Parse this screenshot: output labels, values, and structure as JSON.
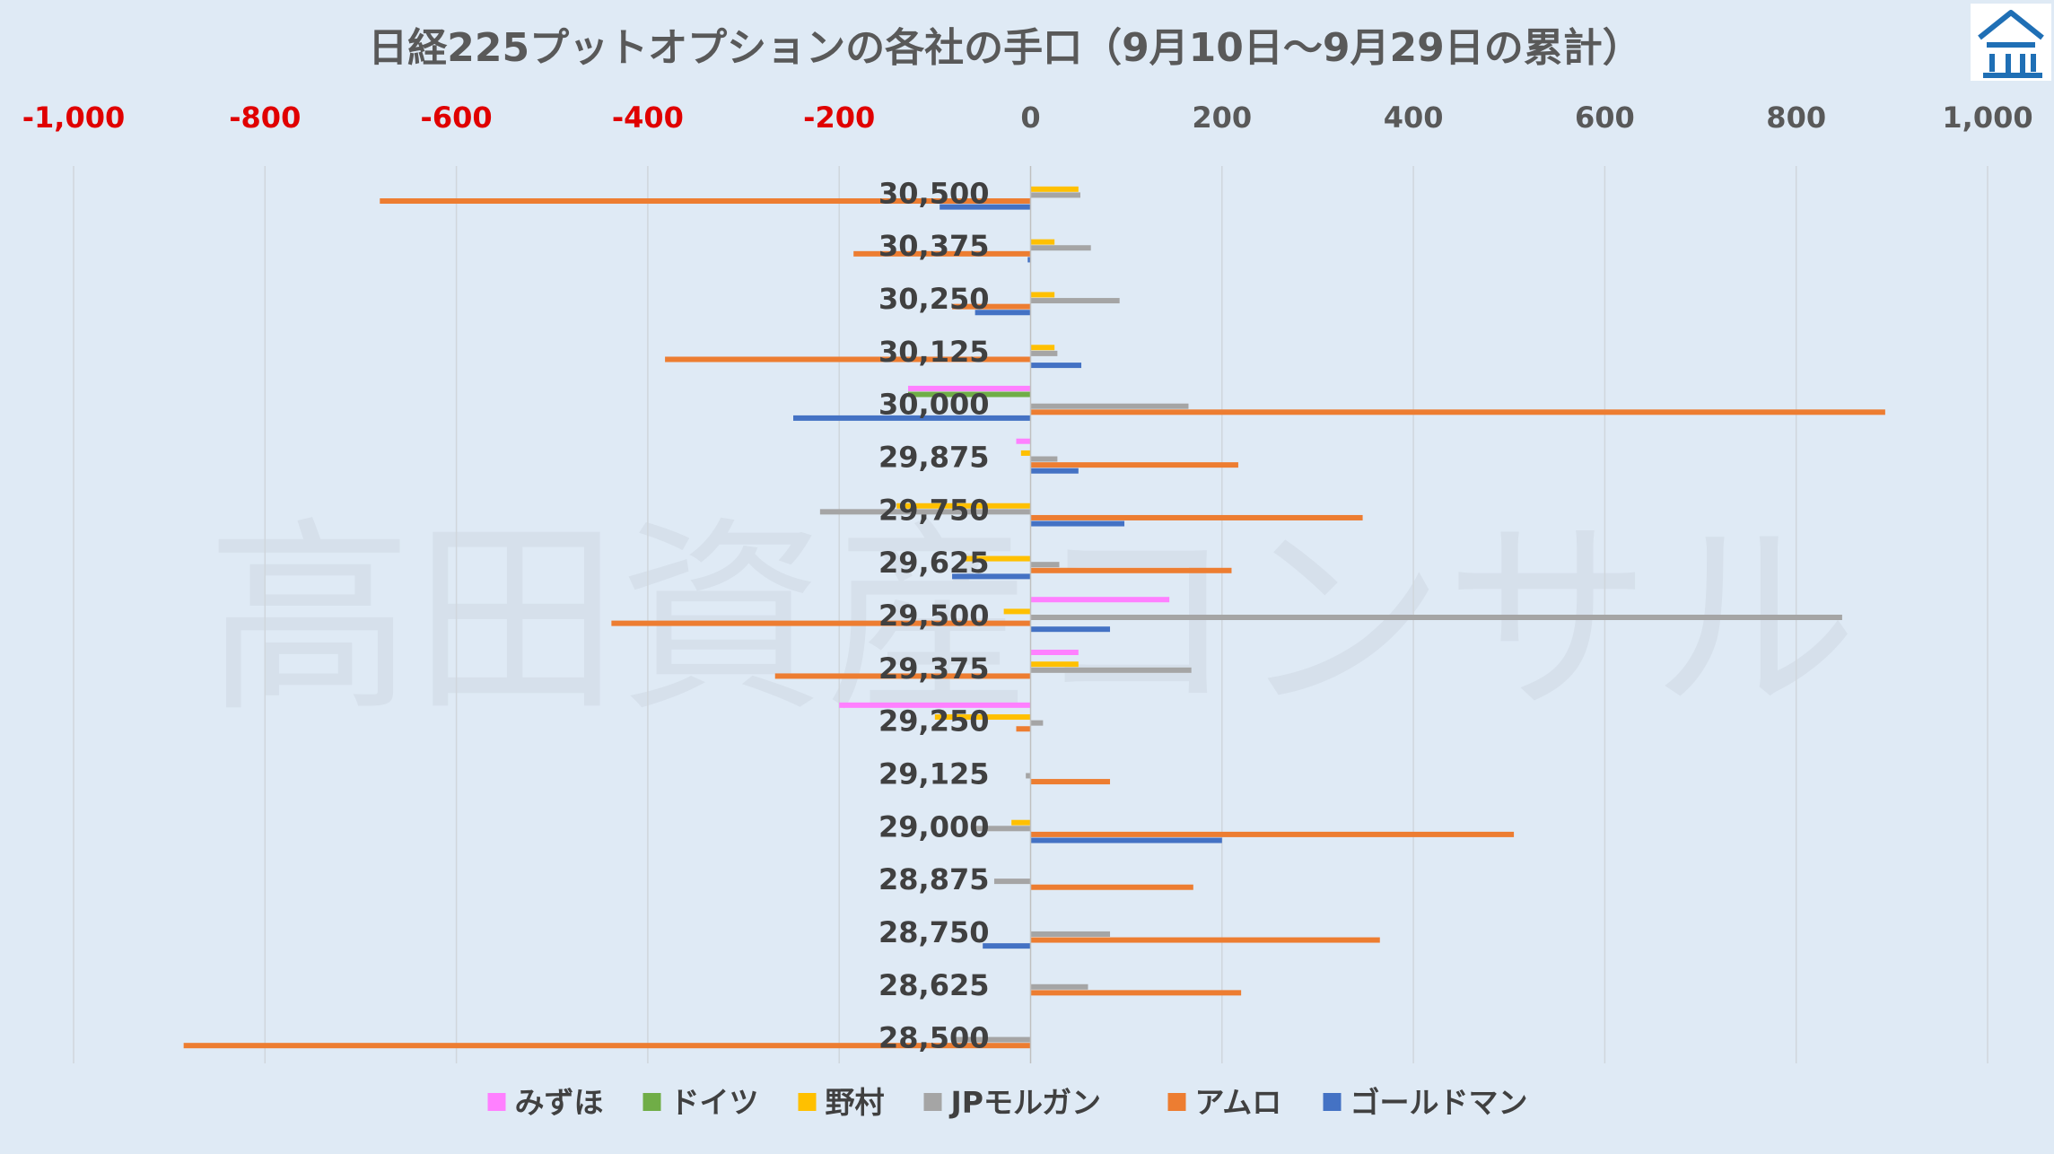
{
  "logo": {
    "icon": "house-logo-icon",
    "color": "#1f6fb5"
  },
  "watermark_text": "高田資産コンサル",
  "chart_data": {
    "type": "bar",
    "orientation": "horizontal",
    "title": "日経225プットオプションの各社の手口（9月10日～9月29日の累計）",
    "xlim": [
      -1000,
      1000
    ],
    "x_ticks": [
      -1000,
      -800,
      -600,
      -400,
      -200,
      0,
      200,
      400,
      600,
      800,
      1000
    ],
    "x_tick_labels": [
      "-1,000",
      "-800",
      "-600",
      "-400",
      "-200",
      "0",
      "200",
      "400",
      "600",
      "800",
      "1,000"
    ],
    "negative_tick_color": "#e00000",
    "grid": true,
    "legend_position": "bottom",
    "categories": [
      "30,500",
      "30,375",
      "30,250",
      "30,125",
      "30,000",
      "29,875",
      "29,750",
      "29,625",
      "29,500",
      "29,375",
      "29,250",
      "29,125",
      "29,000",
      "28,875",
      "28,750",
      "28,625",
      "28,500"
    ],
    "series": [
      {
        "name": "みずほ",
        "color": "#ff80ff",
        "values": [
          0,
          0,
          0,
          0,
          -128,
          -15,
          0,
          0,
          145,
          50,
          -200,
          0,
          0,
          0,
          0,
          0,
          0
        ]
      },
      {
        "name": "ドイツ",
        "color": "#70ad47",
        "values": [
          0,
          0,
          0,
          0,
          -128,
          0,
          0,
          0,
          0,
          0,
          0,
          0,
          0,
          0,
          0,
          0,
          0
        ]
      },
      {
        "name": "野村",
        "color": "#ffc000",
        "values": [
          50,
          25,
          25,
          25,
          0,
          -10,
          -140,
          -72,
          -28,
          50,
          -100,
          0,
          -20,
          0,
          0,
          0,
          0
        ]
      },
      {
        "name": "JPモルガン",
        "color": "#a5a5a5",
        "values": [
          52,
          63,
          93,
          28,
          165,
          28,
          -220,
          30,
          848,
          168,
          13,
          -5,
          -60,
          -38,
          83,
          60,
          -80
        ]
      },
      {
        "name": "アムロ",
        "color": "#ed7d31",
        "values": [
          -680,
          -185,
          -82,
          -382,
          893,
          217,
          347,
          210,
          -438,
          -267,
          -15,
          83,
          505,
          170,
          365,
          220,
          -885
        ]
      },
      {
        "name": "ゴールドマン",
        "color": "#4472c4",
        "values": [
          -95,
          -3,
          -58,
          53,
          -248,
          50,
          98,
          -82,
          83,
          0,
          0,
          0,
          200,
          0,
          -50,
          0,
          0
        ]
      }
    ]
  }
}
